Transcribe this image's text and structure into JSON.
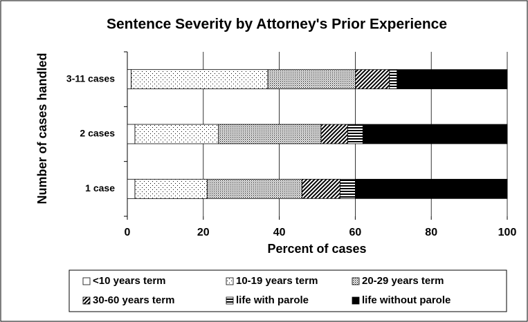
{
  "chart_data": {
    "type": "stacked_barh",
    "title": "Sentence Severity by Attorney's Prior Experience",
    "xlabel": "Percent of cases",
    "ylabel": "Number of cases handled",
    "categories": [
      "1 case",
      "2 cases",
      "3-11 cases"
    ],
    "series": [
      {
        "name": "<10 years term",
        "pattern": "white",
        "values": [
          2,
          2,
          1
        ]
      },
      {
        "name": "10-19 years term",
        "pattern": "sparse-dots",
        "values": [
          19,
          22,
          36
        ]
      },
      {
        "name": "20-29 years term",
        "pattern": "dense-dots",
        "values": [
          25,
          27,
          23
        ]
      },
      {
        "name": "30-60 years term",
        "pattern": "diagonal",
        "values": [
          10,
          7,
          9
        ]
      },
      {
        "name": "life with parole",
        "pattern": "horizontal",
        "values": [
          4,
          4,
          2
        ]
      },
      {
        "name": "life without parole",
        "pattern": "black",
        "values": [
          40,
          38,
          29
        ]
      }
    ],
    "xlim": [
      0,
      100
    ],
    "xticks": [
      0,
      20,
      40,
      60,
      80,
      100
    ],
    "grid": true,
    "legend": "bottom"
  }
}
